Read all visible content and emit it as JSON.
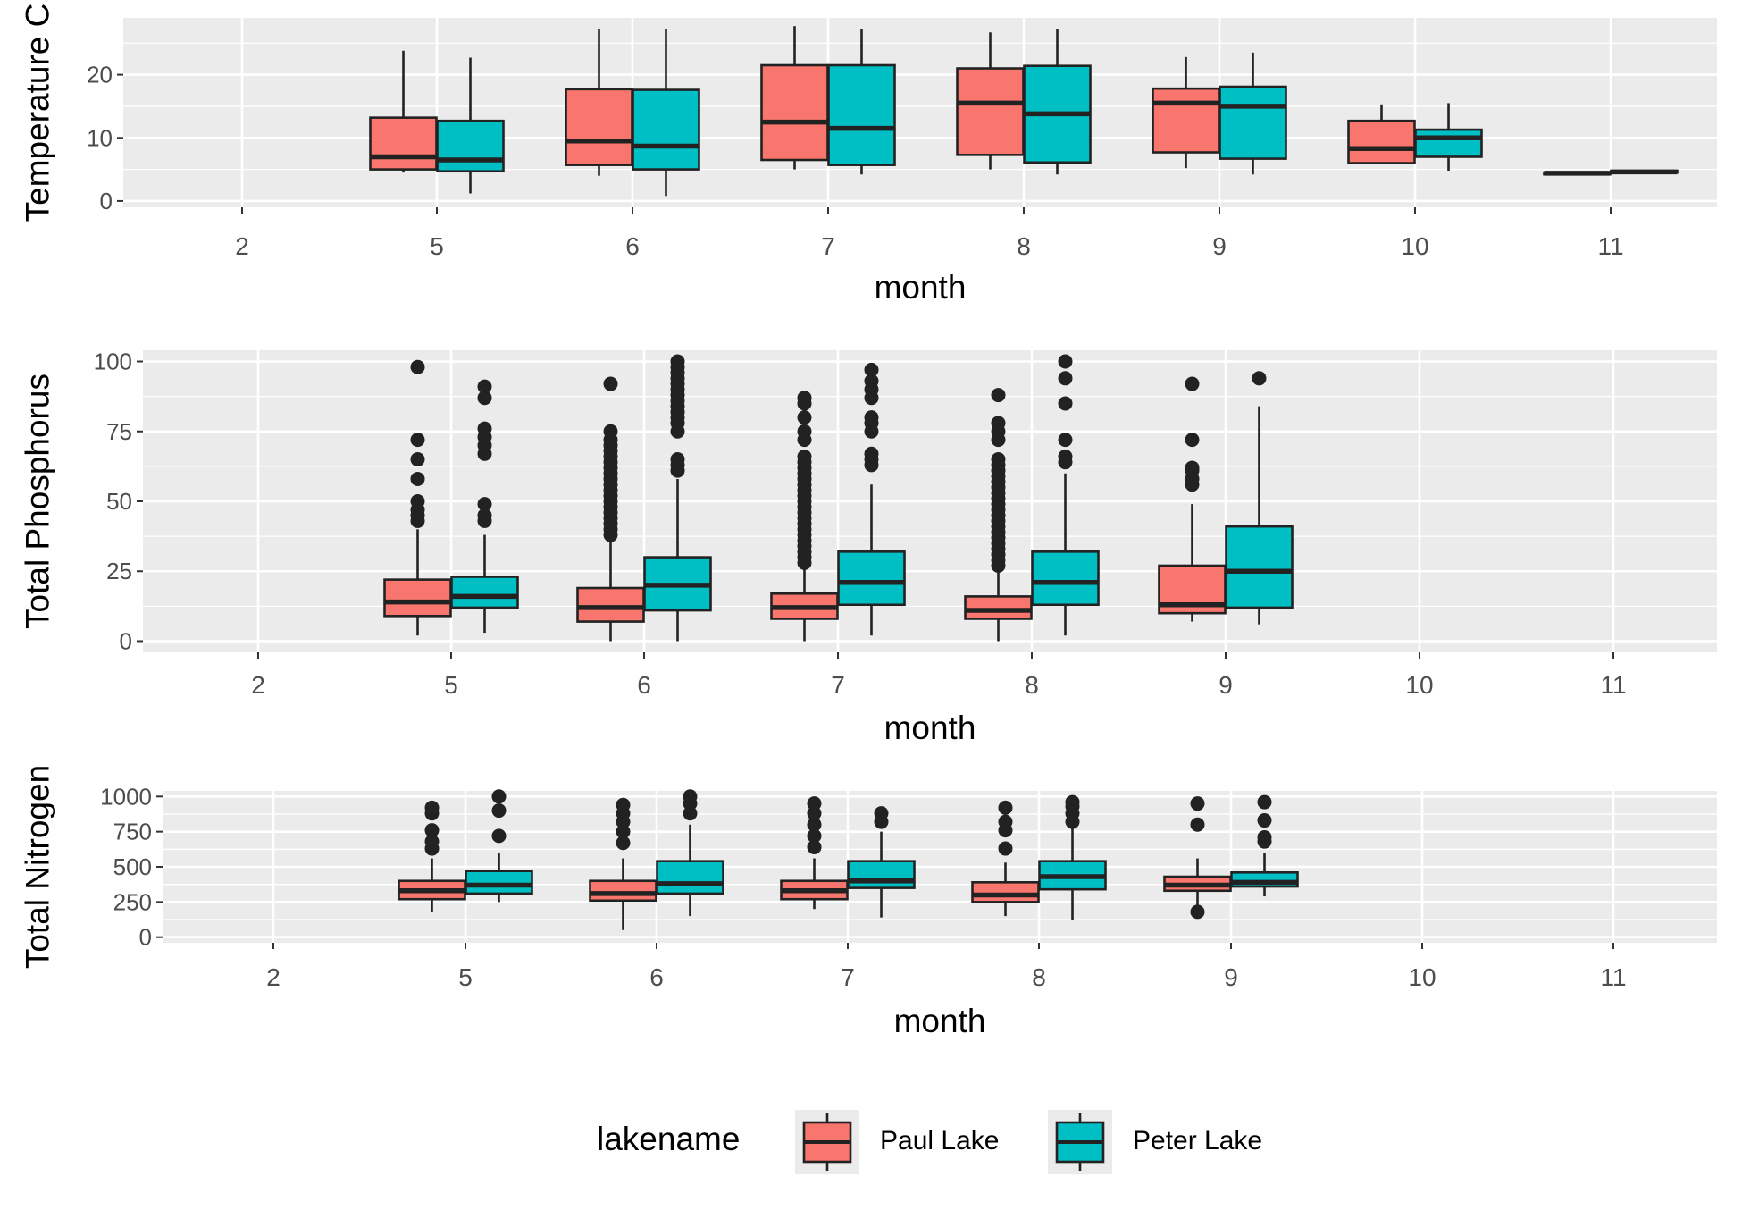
{
  "chart_data": [
    {
      "type": "box",
      "panel": "temperature",
      "title": "",
      "xlabel": "month",
      "ylabel": "Temperature C",
      "categories": [
        "2",
        "5",
        "6",
        "7",
        "8",
        "9",
        "10",
        "11"
      ],
      "ylim": [
        -1,
        29
      ],
      "yticks": [
        0,
        10,
        20
      ],
      "grid": true,
      "series": [
        {
          "name": "Paul Lake",
          "boxes": [
            null,
            {
              "min": 4.5,
              "q1": 5.0,
              "median": 7.0,
              "q3": 13.2,
              "max": 23.8,
              "outliers": []
            },
            {
              "min": 4.0,
              "q1": 5.7,
              "median": 9.5,
              "q3": 17.7,
              "max": 27.3,
              "outliers": []
            },
            {
              "min": 5.0,
              "q1": 6.5,
              "median": 12.5,
              "q3": 21.5,
              "max": 27.7,
              "outliers": []
            },
            {
              "min": 5.0,
              "q1": 7.3,
              "median": 15.5,
              "q3": 21.0,
              "max": 26.7,
              "outliers": []
            },
            {
              "min": 5.2,
              "q1": 7.7,
              "median": 15.5,
              "q3": 17.8,
              "max": 22.8,
              "outliers": []
            },
            {
              "min": 5.8,
              "q1": 6.0,
              "median": 8.3,
              "q3": 12.7,
              "max": 15.3,
              "outliers": []
            },
            {
              "min": 4.3,
              "q1": 4.3,
              "median": 4.4,
              "q3": 4.5,
              "max": 4.6,
              "outliers": []
            }
          ]
        },
        {
          "name": "Peter Lake",
          "boxes": [
            null,
            {
              "min": 1.2,
              "q1": 4.7,
              "median": 6.5,
              "q3": 12.7,
              "max": 22.7,
              "outliers": []
            },
            {
              "min": 0.8,
              "q1": 5.0,
              "median": 8.7,
              "q3": 17.6,
              "max": 27.2,
              "outliers": []
            },
            {
              "min": 4.2,
              "q1": 5.7,
              "median": 11.5,
              "q3": 21.5,
              "max": 27.2,
              "outliers": []
            },
            {
              "min": 4.2,
              "q1": 6.1,
              "median": 13.8,
              "q3": 21.4,
              "max": 27.2,
              "outliers": []
            },
            {
              "min": 4.2,
              "q1": 6.7,
              "median": 15.0,
              "q3": 18.1,
              "max": 23.5,
              "outliers": []
            },
            {
              "min": 4.8,
              "q1": 7.0,
              "median": 10.0,
              "q3": 11.3,
              "max": 15.5,
              "outliers": []
            },
            {
              "min": 4.5,
              "q1": 4.5,
              "median": 4.6,
              "q3": 4.8,
              "max": 4.9,
              "outliers": []
            }
          ]
        }
      ]
    },
    {
      "type": "box",
      "panel": "phosphorus",
      "title": "",
      "xlabel": "month",
      "ylabel": "Total Phosphorus",
      "categories": [
        "2",
        "5",
        "6",
        "7",
        "8",
        "9",
        "10",
        "11"
      ],
      "ylim": [
        -4,
        104
      ],
      "yticks": [
        0,
        25,
        50,
        75,
        100
      ],
      "grid": true,
      "series": [
        {
          "name": "Paul Lake",
          "boxes": [
            null,
            {
              "min": 2,
              "q1": 9,
              "median": 14,
              "q3": 22,
              "max": 40,
              "outliers": [
                43,
                45,
                47,
                50,
                58,
                65,
                72,
                98
              ]
            },
            {
              "min": 0,
              "q1": 7,
              "median": 12,
              "q3": 19,
              "max": 36,
              "outliers": [
                38,
                40,
                42,
                44,
                46,
                48,
                50,
                52,
                54,
                56,
                58,
                60,
                62,
                64,
                66,
                68,
                70,
                72,
                75,
                92
              ]
            },
            {
              "min": 0,
              "q1": 8,
              "median": 12,
              "q3": 17,
              "max": 26,
              "outliers": [
                28,
                30,
                32,
                34,
                36,
                38,
                40,
                42,
                44,
                46,
                48,
                50,
                52,
                54,
                56,
                58,
                60,
                62,
                64,
                66,
                72,
                75,
                80,
                85,
                87
              ]
            },
            {
              "min": 0,
              "q1": 8,
              "median": 11,
              "q3": 16,
              "max": 25,
              "outliers": [
                27,
                29,
                31,
                33,
                35,
                37,
                39,
                41,
                43,
                45,
                47,
                49,
                51,
                53,
                55,
                57,
                59,
                61,
                63,
                65,
                72,
                75,
                78,
                88
              ]
            },
            {
              "min": 7,
              "q1": 10,
              "median": 13,
              "q3": 27,
              "max": 49,
              "outliers": [
                56,
                58,
                61,
                62,
                72,
                92
              ]
            },
            null,
            null
          ]
        },
        {
          "name": "Peter Lake",
          "boxes": [
            null,
            {
              "min": 3,
              "q1": 12,
              "median": 16,
              "q3": 23,
              "max": 38,
              "outliers": [
                43,
                45,
                49,
                67,
                70,
                73,
                76,
                87,
                91
              ]
            },
            {
              "min": 0,
              "q1": 11,
              "median": 20,
              "q3": 30,
              "max": 58,
              "outliers": [
                61,
                63,
                65,
                75,
                78,
                80,
                82,
                84,
                86,
                88,
                90,
                92,
                94,
                96,
                98,
                100
              ]
            },
            {
              "min": 2,
              "q1": 13,
              "median": 21,
              "q3": 32,
              "max": 56,
              "outliers": [
                63,
                65,
                67,
                75,
                78,
                80,
                87,
                90,
                93,
                97
              ]
            },
            {
              "min": 2,
              "q1": 13,
              "median": 21,
              "q3": 32,
              "max": 60,
              "outliers": [
                64,
                66,
                72,
                85,
                94,
                100
              ]
            },
            {
              "min": 6,
              "q1": 12,
              "median": 25,
              "q3": 41,
              "max": 84,
              "outliers": [
                94
              ]
            },
            null,
            null
          ]
        }
      ]
    },
    {
      "type": "box",
      "panel": "nitrogen",
      "title": "",
      "xlabel": "month",
      "ylabel": "Total Nitrogen",
      "categories": [
        "2",
        "5",
        "6",
        "7",
        "8",
        "9",
        "10",
        "11"
      ],
      "ylim": [
        -40,
        1040
      ],
      "yticks": [
        0,
        250,
        500,
        750,
        1000
      ],
      "yticklabels": [
        "0",
        "250",
        "500",
        "750",
        "1000"
      ],
      "grid": true,
      "series": [
        {
          "name": "Paul Lake",
          "boxes": [
            null,
            {
              "min": 180,
              "q1": 270,
              "median": 330,
              "q3": 400,
              "max": 560,
              "outliers": [
                630,
                680,
                760,
                880,
                920
              ]
            },
            {
              "min": 50,
              "q1": 260,
              "median": 310,
              "q3": 400,
              "max": 560,
              "outliers": [
                670,
                750,
                820,
                880,
                940
              ]
            },
            {
              "min": 200,
              "q1": 270,
              "median": 330,
              "q3": 400,
              "max": 560,
              "outliers": [
                640,
                720,
                800,
                880,
                950
              ]
            },
            {
              "min": 150,
              "q1": 250,
              "median": 300,
              "q3": 390,
              "max": 530,
              "outliers": [
                630,
                760,
                820,
                920
              ]
            },
            {
              "min": 180,
              "q1": 330,
              "median": 370,
              "q3": 430,
              "max": 560,
              "outliers": [
                180,
                800,
                950
              ]
            }
          ]
        },
        {
          "name": "Peter Lake",
          "boxes": [
            null,
            {
              "min": 250,
              "q1": 310,
              "median": 370,
              "q3": 470,
              "max": 600,
              "outliers": [
                720,
                900,
                1000
              ]
            },
            {
              "min": 150,
              "q1": 310,
              "median": 380,
              "q3": 540,
              "max": 800,
              "outliers": [
                880,
                950,
                1000
              ]
            },
            {
              "min": 140,
              "q1": 350,
              "median": 400,
              "q3": 540,
              "max": 750,
              "outliers": [
                820,
                880
              ]
            },
            {
              "min": 120,
              "q1": 340,
              "median": 430,
              "q3": 540,
              "max": 800,
              "outliers": [
                820,
                880,
                930,
                960
              ]
            },
            {
              "min": 290,
              "q1": 360,
              "median": 390,
              "q3": 460,
              "max": 600,
              "outliers": [
                680,
                710,
                830,
                960
              ]
            }
          ]
        }
      ]
    }
  ],
  "legend": {
    "title": "lakename",
    "position": "bottom",
    "entries": [
      {
        "label": "Paul Lake",
        "color": "#F8766D"
      },
      {
        "label": "Peter Lake",
        "color": "#00BFC4"
      }
    ]
  },
  "colors": {
    "panel_bg": "#EBEBEB",
    "grid": "#FFFFFF",
    "box_stroke": "#222222",
    "text": "#4D4D4D",
    "title_text": "#000000"
  }
}
